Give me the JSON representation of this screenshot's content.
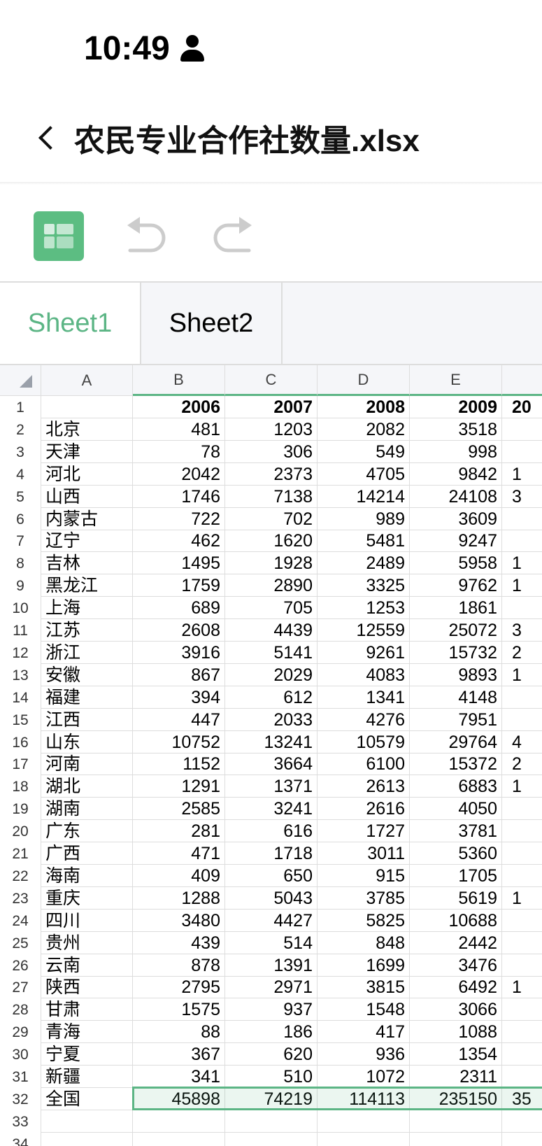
{
  "status": {
    "time": "10:49",
    "icon": "person-icon"
  },
  "header": {
    "title": "农民专业合作社数量.xlsx",
    "back_icon": "chevron-left-icon"
  },
  "toolbar": {
    "app_icon": "grid-icon",
    "undo_icon": "undo-icon",
    "redo_icon": "redo-icon",
    "accent": "#5cbd82"
  },
  "tabs": [
    {
      "label": "Sheet1",
      "active": true
    },
    {
      "label": "Sheet2",
      "active": false
    }
  ],
  "columns": [
    "A",
    "B",
    "C",
    "D",
    "E"
  ],
  "rows": [
    [
      "",
      "2006",
      "2007",
      "2008",
      "2009",
      "20"
    ],
    [
      "北京",
      "481",
      "1203",
      "2082",
      "3518",
      ""
    ],
    [
      "天津",
      "78",
      "306",
      "549",
      "998",
      ""
    ],
    [
      "河北",
      "2042",
      "2373",
      "4705",
      "9842",
      "1"
    ],
    [
      "山西",
      "1746",
      "7138",
      "14214",
      "24108",
      "3"
    ],
    [
      "内蒙古",
      "722",
      "702",
      "989",
      "3609",
      ""
    ],
    [
      "辽宁",
      "462",
      "1620",
      "5481",
      "9247",
      ""
    ],
    [
      "吉林",
      "1495",
      "1928",
      "2489",
      "5958",
      "1"
    ],
    [
      "黑龙江",
      "1759",
      "2890",
      "3325",
      "9762",
      "1"
    ],
    [
      "上海",
      "689",
      "705",
      "1253",
      "1861",
      ""
    ],
    [
      "江苏",
      "2608",
      "4439",
      "12559",
      "25072",
      "3"
    ],
    [
      "浙江",
      "3916",
      "5141",
      "9261",
      "15732",
      "2"
    ],
    [
      "安徽",
      "867",
      "2029",
      "4083",
      "9893",
      "1"
    ],
    [
      "福建",
      "394",
      "612",
      "1341",
      "4148",
      ""
    ],
    [
      "江西",
      "447",
      "2033",
      "4276",
      "7951",
      ""
    ],
    [
      "山东",
      "10752",
      "13241",
      "10579",
      "29764",
      "4"
    ],
    [
      "河南",
      "1152",
      "3664",
      "6100",
      "15372",
      "2"
    ],
    [
      "湖北",
      "1291",
      "1371",
      "2613",
      "6883",
      "1"
    ],
    [
      "湖南",
      "2585",
      "3241",
      "2616",
      "4050",
      ""
    ],
    [
      "广东",
      "281",
      "616",
      "1727",
      "3781",
      ""
    ],
    [
      "广西",
      "471",
      "1718",
      "3011",
      "5360",
      ""
    ],
    [
      "海南",
      "409",
      "650",
      "915",
      "1705",
      ""
    ],
    [
      "重庆",
      "1288",
      "5043",
      "3785",
      "5619",
      "1"
    ],
    [
      "四川",
      "3480",
      "4427",
      "5825",
      "10688",
      ""
    ],
    [
      "贵州",
      "439",
      "514",
      "848",
      "2442",
      ""
    ],
    [
      "云南",
      "878",
      "1391",
      "1699",
      "3476",
      ""
    ],
    [
      "陕西",
      "2795",
      "2971",
      "3815",
      "6492",
      "1"
    ],
    [
      "甘肃",
      "1575",
      "937",
      "1548",
      "3066",
      ""
    ],
    [
      "青海",
      "88",
      "186",
      "417",
      "1088",
      ""
    ],
    [
      "宁夏",
      "367",
      "620",
      "936",
      "1354",
      ""
    ],
    [
      "新疆",
      "341",
      "510",
      "1072",
      "2311",
      ""
    ],
    [
      "全国",
      "45898",
      "74219",
      "114113",
      "235150",
      "35"
    ],
    [
      "",
      "",
      "",
      "",
      "",
      ""
    ],
    [
      "",
      "",
      "",
      "",
      "",
      ""
    ]
  ],
  "row_numbers": [
    "1",
    "2",
    "3",
    "4",
    "5",
    "6",
    "7",
    "8",
    "9",
    "10",
    "11",
    "12",
    "13",
    "14",
    "15",
    "16",
    "17",
    "18",
    "19",
    "20",
    "21",
    "22",
    "23",
    "24",
    "25",
    "26",
    "27",
    "28",
    "29",
    "30",
    "31",
    "32",
    "33",
    "34"
  ]
}
